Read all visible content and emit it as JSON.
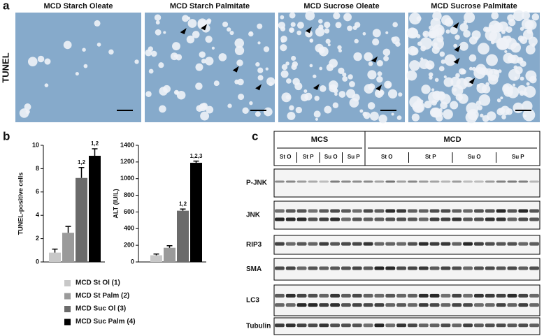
{
  "panel_labels": [
    "a",
    "b",
    "c"
  ],
  "panel_a": {
    "row_label": "TUNEL",
    "titles": [
      "MCD Starch Oleate",
      "MCD Starch Palmitate",
      "MCD Sucrose Oleate",
      "MCD Sucrose Palmitate"
    ]
  },
  "chart_data": [
    {
      "type": "bar",
      "ylabel": "TUNEL-positive cells",
      "values": [
        0.8,
        2.5,
        7.2,
        9.1
      ],
      "errors": [
        0.3,
        0.55,
        0.9,
        0.6
      ],
      "annotations": [
        null,
        null,
        "1,2",
        "1,2"
      ],
      "ylim": [
        0,
        10
      ],
      "yticks": [
        0,
        2,
        4,
        6,
        8,
        10
      ]
    },
    {
      "type": "bar",
      "ylabel": "ALT (IU/L)",
      "values": [
        80,
        170,
        615,
        1190
      ],
      "errors": [
        15,
        25,
        20,
        20
      ],
      "annotations": [
        null,
        null,
        "1,2",
        "1,2,3"
      ],
      "ylim": [
        0,
        1400
      ],
      "yticks": [
        0,
        200,
        400,
        600,
        800,
        1000,
        1200,
        1400
      ]
    }
  ],
  "legend": [
    {
      "label": "MCD St Ol (1)",
      "color": "#c8c8c8"
    },
    {
      "label": "MCD St Palm (2)",
      "color": "#9a9a9a"
    },
    {
      "label": "MCD Suc Ol (3)",
      "color": "#6b6b6b"
    },
    {
      "label": "MCD Suc Palm (4)",
      "color": "#000000"
    }
  ],
  "panel_c": {
    "groups": [
      "MCS",
      "MCD"
    ],
    "subgroups": [
      [
        "St O",
        "St P",
        "Su O",
        "Su P"
      ],
      [
        "St O",
        "St P",
        "Su O",
        "Su P"
      ]
    ],
    "proteins": [
      "P-JNK",
      "JNK",
      "RIP3",
      "SMA",
      "LC3",
      "Tubulin"
    ]
  }
}
